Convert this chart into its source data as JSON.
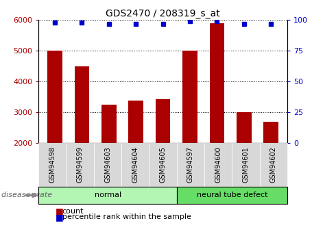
{
  "title": "GDS2470 / 208319_s_at",
  "samples": [
    "GSM94598",
    "GSM94599",
    "GSM94603",
    "GSM94604",
    "GSM94605",
    "GSM94597",
    "GSM94600",
    "GSM94601",
    "GSM94602"
  ],
  "counts": [
    5000,
    4500,
    3250,
    3380,
    3420,
    5000,
    5900,
    3000,
    2680
  ],
  "percentiles": [
    98,
    98,
    97,
    97,
    97,
    99,
    99,
    97,
    97
  ],
  "bar_color": "#aa0000",
  "dot_color": "#0000cc",
  "ylim_left": [
    2000,
    6000
  ],
  "ylim_right": [
    0,
    100
  ],
  "yticks_left": [
    2000,
    3000,
    4000,
    5000,
    6000
  ],
  "yticks_right": [
    0,
    25,
    50,
    75,
    100
  ],
  "groups": [
    {
      "label": "normal",
      "indices": [
        0,
        1,
        2,
        3,
        4
      ],
      "color": "#b3f5b3"
    },
    {
      "label": "neural tube defect",
      "indices": [
        5,
        6,
        7,
        8
      ],
      "color": "#66dd66"
    }
  ],
  "disease_state_label": "disease state",
  "legend_count_label": "count",
  "legend_pct_label": "percentile rank within the sample",
  "bar_baseline": 2000
}
